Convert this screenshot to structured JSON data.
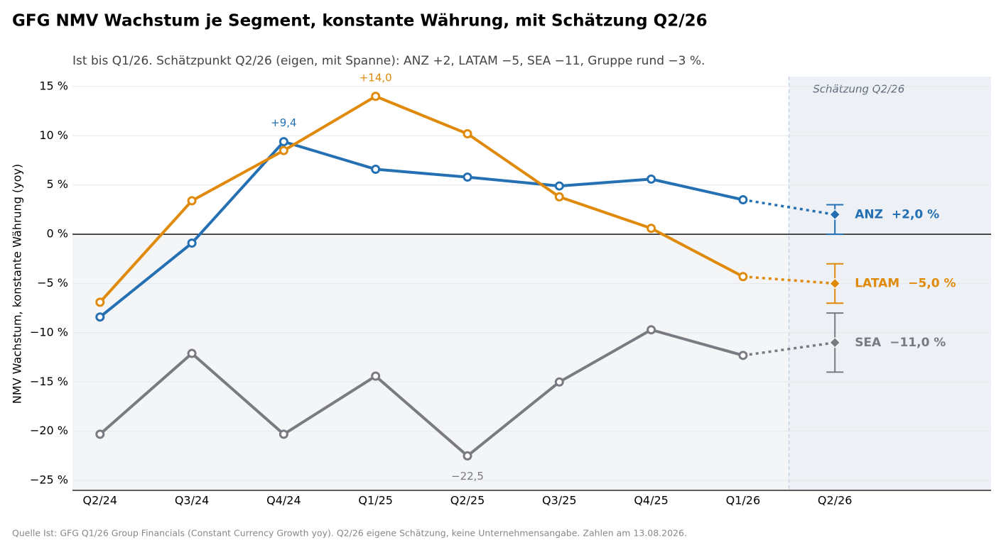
{
  "chart_data": {
    "type": "line",
    "title": "GFG NMV Wachstum je Segment, konstante Währung, mit Schätzung Q2/26",
    "subtitle": "Ist bis Q1/26. Schätzpunkt Q2/26 (eigen, mit Spanne): ANZ +2, LATAM −5, SEA −11, Gruppe rund −3 %.",
    "ylabel": "NMV Wachstum, konstante Währung (yoy)",
    "forecast_label": "Schätzung Q2/26",
    "source": "Quelle Ist: GFG Q1/26 Group Financials (Constant Currency Growth yoy). Q2/26 eigene Schätzung, keine Unternehmensangabe. Zahlen am 13.08.2026.",
    "categories": [
      "Q2/24",
      "Q3/24",
      "Q4/24",
      "Q1/25",
      "Q2/25",
      "Q3/25",
      "Q4/25",
      "Q1/26",
      "Q2/26"
    ],
    "ylim": [
      -26,
      16
    ],
    "yticks": [
      {
        "value": 15,
        "label": "15 %"
      },
      {
        "value": 10,
        "label": "10 %"
      },
      {
        "value": 5,
        "label": "5 %"
      },
      {
        "value": 0,
        "label": "0 %"
      },
      {
        "value": -5,
        "label": "−5 %"
      },
      {
        "value": -10,
        "label": "−10 %"
      },
      {
        "value": -15,
        "label": "−15 %"
      },
      {
        "value": -20,
        "label": "−20 %"
      },
      {
        "value": -25,
        "label": "−25 %"
      }
    ],
    "grid": true,
    "series": [
      {
        "name": "ANZ",
        "color": "#2470b3",
        "values": [
          -8.4,
          -0.9,
          9.4,
          6.6,
          5.8,
          4.9,
          5.6,
          3.5,
          null
        ],
        "value_labels": [
          null,
          null,
          "+9,4",
          null,
          null,
          null,
          null,
          null,
          null
        ],
        "estimate": {
          "value": 2.0,
          "low": 0,
          "high": 3,
          "label": "+2,0 %"
        }
      },
      {
        "name": "LATAM",
        "color": "#e08a0b",
        "values": [
          -6.9,
          3.4,
          8.5,
          14.0,
          10.2,
          3.8,
          0.6,
          -4.3,
          null
        ],
        "value_labels": [
          null,
          null,
          null,
          "+14,0",
          null,
          null,
          null,
          null,
          null
        ],
        "estimate": {
          "value": -5.0,
          "low": -7,
          "high": -3,
          "label": "−5,0 %"
        }
      },
      {
        "name": "SEA",
        "color": "#7a7b82",
        "values": [
          -20.3,
          -12.1,
          -20.3,
          -14.4,
          -22.5,
          -15.0,
          -9.7,
          -12.3,
          null
        ],
        "value_labels": [
          null,
          null,
          null,
          null,
          "−22,5",
          null,
          null,
          null,
          null
        ],
        "estimate": {
          "value": -11.0,
          "low": -14,
          "high": -8,
          "label": "−11,0 %"
        }
      }
    ]
  }
}
